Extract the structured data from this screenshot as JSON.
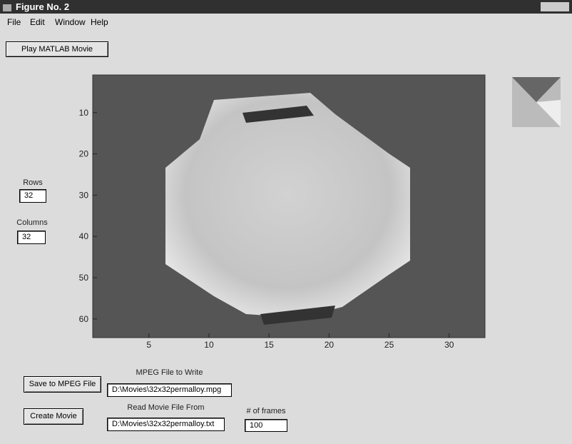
{
  "window": {
    "title": "Figure No. 2"
  },
  "menu": [
    "File",
    "Edit",
    "Window",
    "Help"
  ],
  "buttons": {
    "play": "Play MATLAB Movie",
    "save": "Save to MPEG File",
    "create": "Create Movie"
  },
  "fields": {
    "rows": {
      "label": "Rows",
      "value": "32"
    },
    "columns": {
      "label": "Columns",
      "value": "32"
    },
    "mpeg_file": {
      "label": "MPEG File to Write",
      "value": "D:\\Movies\\32x32permalloy.mpg"
    },
    "movie_file": {
      "label": "Read Movie File From",
      "value": "D:\\Movies\\32x32permalloy.txt"
    },
    "frames": {
      "label": "# of frames",
      "value": "100"
    }
  },
  "axes": {
    "xticks": [
      5,
      10,
      15,
      20,
      25,
      30
    ],
    "yticks": [
      10,
      20,
      30,
      40,
      50,
      60
    ]
  }
}
